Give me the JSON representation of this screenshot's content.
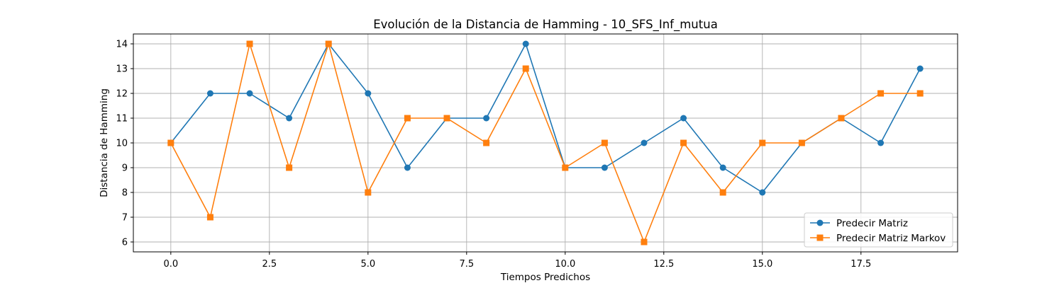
{
  "chart_data": {
    "type": "line",
    "title": "Evolución de la Distancia de Hamming - 10_SFS_Inf_mutua",
    "xlabel": "Tiempos Predichos",
    "ylabel": "Distancia de Hamming",
    "x": [
      0,
      1,
      2,
      3,
      4,
      5,
      6,
      7,
      8,
      9,
      10,
      11,
      12,
      13,
      14,
      15,
      16,
      17,
      18,
      19
    ],
    "xlim": [
      -0.95,
      19.95
    ],
    "ylim": [
      5.6,
      14.4
    ],
    "xticks": [
      0.0,
      2.5,
      5.0,
      7.5,
      10.0,
      12.5,
      15.0,
      17.5
    ],
    "xtick_labels": [
      "0.0",
      "2.5",
      "5.0",
      "7.5",
      "10.0",
      "12.5",
      "15.0",
      "17.5"
    ],
    "yticks": [
      6,
      7,
      8,
      9,
      10,
      11,
      12,
      13,
      14
    ],
    "ytick_labels": [
      "6",
      "7",
      "8",
      "9",
      "10",
      "11",
      "12",
      "13",
      "14"
    ],
    "grid": true,
    "legend_position": "bottom-right",
    "series": [
      {
        "name": "Predecir Matriz",
        "color": "#1f77b4",
        "marker": "circle",
        "values": [
          10,
          12,
          12,
          11,
          14,
          12,
          9,
          11,
          11,
          14,
          9,
          9,
          10,
          11,
          9,
          8,
          10,
          11,
          10,
          13
        ]
      },
      {
        "name": "Predecir Matriz Markov",
        "color": "#ff7f0e",
        "marker": "square",
        "values": [
          10,
          7,
          14,
          9,
          14,
          8,
          11,
          11,
          10,
          13,
          9,
          10,
          6,
          10,
          8,
          10,
          10,
          11,
          12,
          12
        ]
      }
    ]
  }
}
